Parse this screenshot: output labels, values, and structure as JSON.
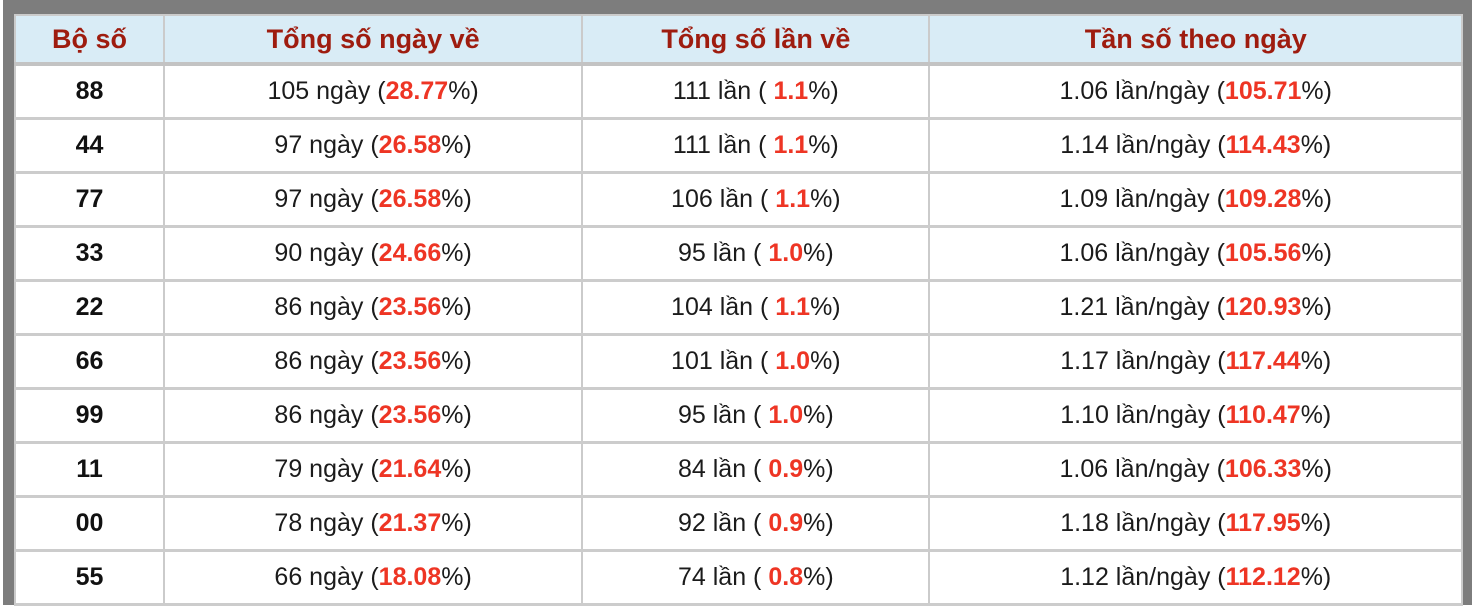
{
  "table": {
    "columns": [
      {
        "key": "bo_so",
        "label": "Bộ số"
      },
      {
        "key": "ngay",
        "label": "Tổng số ngày về"
      },
      {
        "key": "lan",
        "label": "Tổng số lần về"
      },
      {
        "key": "tan_so",
        "label": "Tần số theo ngày"
      }
    ],
    "rows": [
      {
        "bo_so": "88",
        "ngay": {
          "pre": "105 ngày (",
          "red": "28.77",
          "post": "%)"
        },
        "lan": {
          "pre": "111 lần ( ",
          "red": "1.1",
          "post": "%)"
        },
        "tan_so": {
          "pre": "1.06 lần/ngày (",
          "red": "105.71",
          "post": "%)"
        }
      },
      {
        "bo_so": "44",
        "ngay": {
          "pre": "97 ngày (",
          "red": "26.58",
          "post": "%)"
        },
        "lan": {
          "pre": "111 lần ( ",
          "red": "1.1",
          "post": "%)"
        },
        "tan_so": {
          "pre": "1.14 lần/ngày (",
          "red": "114.43",
          "post": "%)"
        }
      },
      {
        "bo_so": "77",
        "ngay": {
          "pre": "97 ngày (",
          "red": "26.58",
          "post": "%)"
        },
        "lan": {
          "pre": "106 lần ( ",
          "red": "1.1",
          "post": "%)"
        },
        "tan_so": {
          "pre": "1.09 lần/ngày (",
          "red": "109.28",
          "post": "%)"
        }
      },
      {
        "bo_so": "33",
        "ngay": {
          "pre": "90 ngày (",
          "red": "24.66",
          "post": "%)"
        },
        "lan": {
          "pre": "95 lần ( ",
          "red": "1.0",
          "post": "%)"
        },
        "tan_so": {
          "pre": "1.06 lần/ngày (",
          "red": "105.56",
          "post": "%)"
        }
      },
      {
        "bo_so": "22",
        "ngay": {
          "pre": "86 ngày (",
          "red": "23.56",
          "post": "%)"
        },
        "lan": {
          "pre": "104 lần ( ",
          "red": "1.1",
          "post": "%)"
        },
        "tan_so": {
          "pre": "1.21 lần/ngày (",
          "red": "120.93",
          "post": "%)"
        }
      },
      {
        "bo_so": "66",
        "ngay": {
          "pre": "86 ngày (",
          "red": "23.56",
          "post": "%)"
        },
        "lan": {
          "pre": "101 lần ( ",
          "red": "1.0",
          "post": "%)"
        },
        "tan_so": {
          "pre": "1.17 lần/ngày (",
          "red": "117.44",
          "post": "%)"
        }
      },
      {
        "bo_so": "99",
        "ngay": {
          "pre": "86 ngày (",
          "red": "23.56",
          "post": "%)"
        },
        "lan": {
          "pre": "95 lần ( ",
          "red": "1.0",
          "post": "%)"
        },
        "tan_so": {
          "pre": "1.10 lần/ngày (",
          "red": "110.47",
          "post": "%)"
        }
      },
      {
        "bo_so": "11",
        "ngay": {
          "pre": "79 ngày (",
          "red": "21.64",
          "post": "%)"
        },
        "lan": {
          "pre": "84 lần ( ",
          "red": "0.9",
          "post": "%)"
        },
        "tan_so": {
          "pre": "1.06 lần/ngày (",
          "red": "106.33",
          "post": "%)"
        }
      },
      {
        "bo_so": "00",
        "ngay": {
          "pre": "78 ngày (",
          "red": "21.37",
          "post": "%)"
        },
        "lan": {
          "pre": "92 lần ( ",
          "red": "0.9",
          "post": "%)"
        },
        "tan_so": {
          "pre": "1.18 lần/ngày (",
          "red": "117.95",
          "post": "%)"
        }
      },
      {
        "bo_so": "55",
        "ngay": {
          "pre": "66 ngày (",
          "red": "18.08",
          "post": "%)"
        },
        "lan": {
          "pre": "74 lần ( ",
          "red": "0.8",
          "post": "%)"
        },
        "tan_so": {
          "pre": "1.12 lần/ngày (",
          "red": "112.12",
          "post": "%)"
        }
      }
    ]
  },
  "colors": {
    "header_bg": "#d9ecf6",
    "header_text": "#9e1c0f",
    "highlight_red": "#ee3524",
    "cell_border": "#cccccc",
    "frame_gray": "#7d7d7d"
  }
}
